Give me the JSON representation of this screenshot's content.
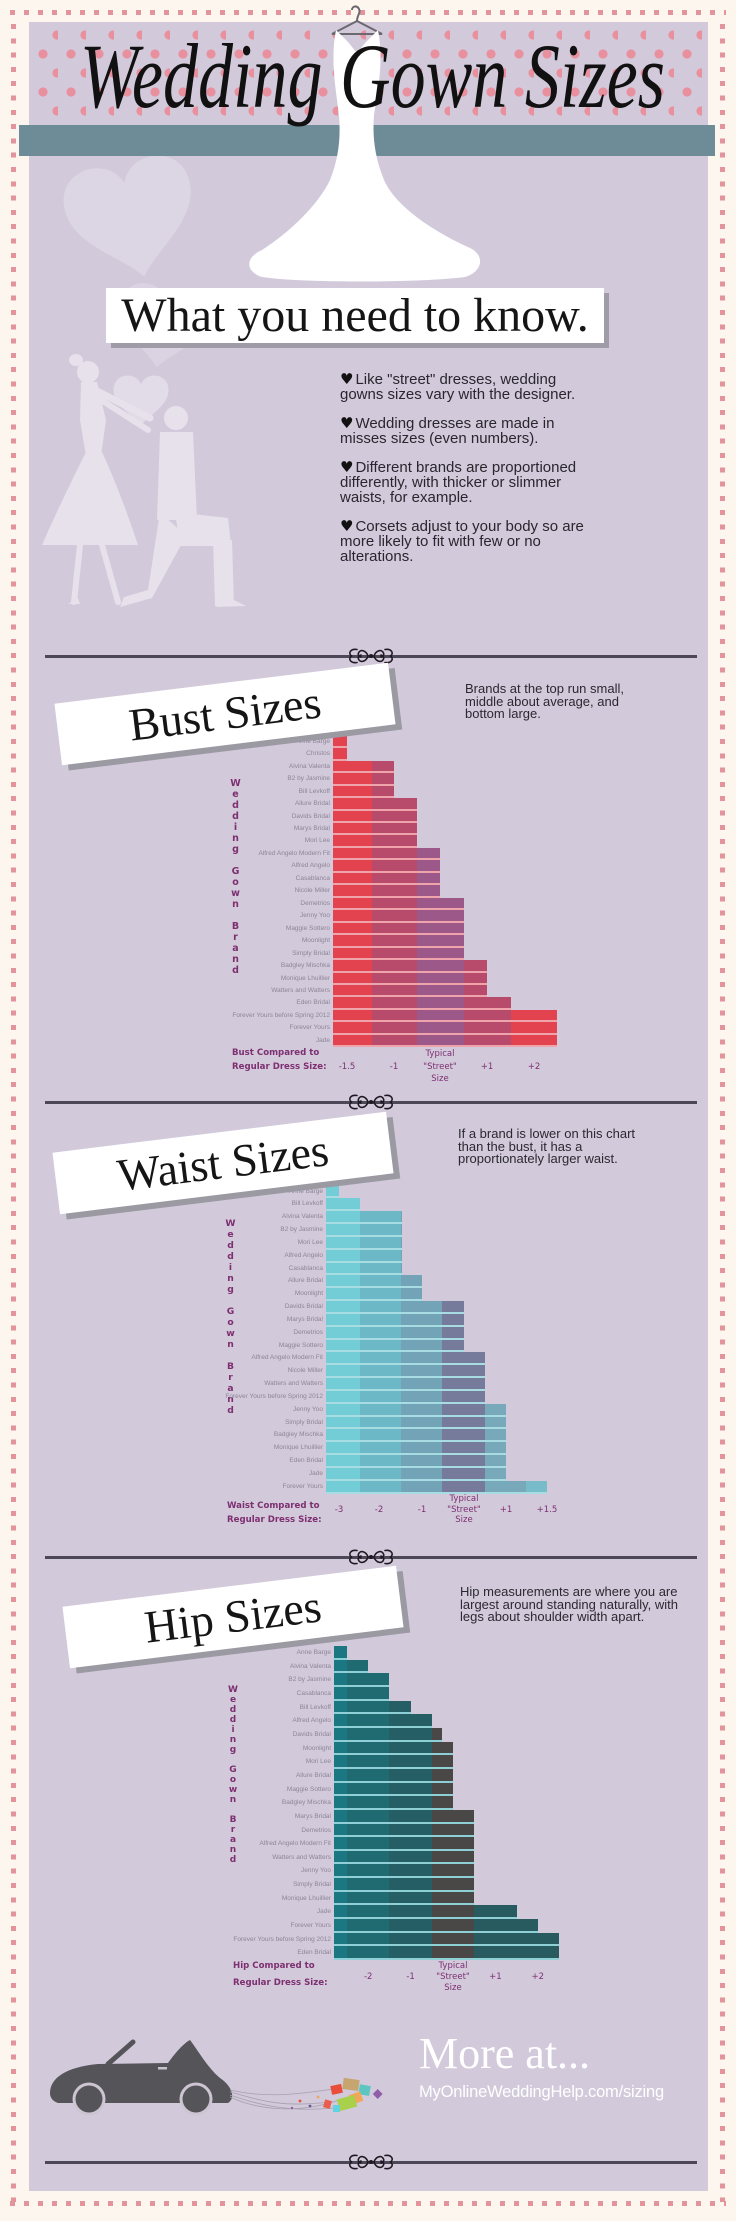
{
  "header": {
    "title": "Wedding Gown Sizes",
    "subtitle": "What you need to know."
  },
  "intro": {
    "bullet_icon": "heart-icon",
    "bullets": [
      "Like \"street\" dresses, wedding gowns sizes vary with the designer.",
      "Wedding dresses are made in misses sizes (even numbers).",
      "Different brands are proportioned differently, with thicker or slimmer waists, for example.",
      "Corsets adjust to your body so are more likely to fit with few or no alterations."
    ]
  },
  "chart_data": [
    {
      "type": "bar",
      "orientation": "horizontal",
      "title": "Bust Sizes",
      "description": "Brands at the top run small, middle about average, and bottom large.",
      "xlabel_lines": [
        "Bust Compared to",
        "Regular Dress Size:"
      ],
      "ylabel": "Wedding Gown Brand",
      "xlim": [
        -2,
        2.5
      ],
      "ticks": [
        {
          "value": -1.5,
          "lines": [
            "-1.5"
          ]
        },
        {
          "value": -1,
          "lines": [
            "-1"
          ]
        },
        {
          "value": 0,
          "lines": [
            "Typical",
            "\"Street\"",
            "Size"
          ]
        },
        {
          "value": 1,
          "lines": [
            "+1"
          ]
        },
        {
          "value": 2,
          "lines": [
            "+2"
          ]
        }
      ],
      "categories": [
        "Anne Barge",
        "Christos",
        "Alvina Valenta",
        "B2 by Jasmine",
        "Bill Levkoff",
        "Allure Bridal",
        "Davids Bridal",
        "Marys Bridal",
        "Mori Lee",
        "Alfred Angelo Modern Fit",
        "Alfred Angelo",
        "Casablanca",
        "Nicole Miller",
        "Demetrios",
        "Jenny Yoo",
        "Maggie Sottero",
        "Moonlight",
        "Simply Bridal",
        "Badgley Mischka",
        "Monique Lhuillier",
        "Watters and Watters",
        "Eden Bridal",
        "Forever Yours before Spring 2012",
        "Forever Yours",
        "Jade"
      ],
      "values": [
        -1.5,
        -1.5,
        -1,
        -1,
        -1,
        -0.5,
        -0.5,
        -0.5,
        -0.5,
        0,
        0,
        0,
        0,
        0.5,
        0.5,
        0.5,
        0.5,
        0.5,
        1,
        1,
        1,
        1.5,
        2.5,
        2.5,
        2.5
      ],
      "band_colors": [
        "#e3434f",
        "#b84a6c",
        "#9b5889",
        "#b84a6c",
        "#e3434f"
      ]
    },
    {
      "type": "bar",
      "orientation": "horizontal",
      "title": "Waist Sizes",
      "description": "If a brand is lower on this chart than the bust, it has a proportionately larger waist.",
      "xlabel_lines": [
        "Waist Compared to",
        "Regular Dress Size:"
      ],
      "ylabel": "Wedding Gown Brand",
      "xlim": [
        -3.5,
        1.5
      ],
      "ticks": [
        {
          "value": -3,
          "lines": [
            "-3"
          ]
        },
        {
          "value": -2,
          "lines": [
            "-2"
          ]
        },
        {
          "value": -1,
          "lines": [
            "-1"
          ]
        },
        {
          "value": 0,
          "lines": [
            "Typical",
            "\"Street\"",
            "Size"
          ]
        },
        {
          "value": 1,
          "lines": [
            "+1"
          ]
        },
        {
          "value": 1.5,
          "lines": [
            "+1.5"
          ]
        }
      ],
      "categories": [
        "Anne Barge",
        "Bill Levkoff",
        "Alvina Valenta",
        "B2 by Jasmine",
        "Mori Lee",
        "Alfred Angelo",
        "Casablanca",
        "Allure Bridal",
        "Moonlight",
        "Davids Bridal",
        "Marys Bridal",
        "Demetrios",
        "Maggie Sottero",
        "Alfred Angelo Modern Fit",
        "Nicole Miller",
        "Watters and Watters",
        "Forever Yours before Spring 2012",
        "Jenny Yoo",
        "Simply Bridal",
        "Badgley Mischka",
        "Monique Lhuillier",
        "Eden Bridal",
        "Jade",
        "Forever Yours"
      ],
      "values": [
        -3,
        -2.5,
        -1.5,
        -1.5,
        -1.5,
        -1.5,
        -1.5,
        -1,
        -1,
        0,
        0,
        0,
        0,
        0.5,
        0.5,
        0.5,
        0.5,
        1,
        1,
        1,
        1,
        1,
        1,
        1.5
      ],
      "band_colors": [
        "#72cdd6",
        "#6db8c6",
        "#72a3b6",
        "#767a9b",
        "#77a9bb",
        "#77bcc8"
      ]
    },
    {
      "type": "bar",
      "orientation": "horizontal",
      "title": "Hip Sizes",
      "description": "Hip measurements are where you are largest around standing naturally, with legs about shoulder width apart.",
      "xlabel_lines": [
        "Hip Compared to",
        "Regular Dress Size:"
      ],
      "ylabel": "Wedding Gown Brand",
      "xlim": [
        -2.75,
        2.5
      ],
      "ticks": [
        {
          "value": -2,
          "lines": [
            "-2"
          ]
        },
        {
          "value": -1,
          "lines": [
            "-1"
          ]
        },
        {
          "value": 0,
          "lines": [
            "Typical",
            "\"Street\"",
            "Size"
          ]
        },
        {
          "value": 1,
          "lines": [
            "+1"
          ]
        },
        {
          "value": 2,
          "lines": [
            "+2"
          ]
        }
      ],
      "categories": [
        "Anne Barge",
        "Alvina Valenta",
        "B2 by Jasmine",
        "Casablanca",
        "Bill Levkoff",
        "Alfred Angelo",
        "Davids Bridal",
        "Moonlight",
        "Mori Lee",
        "Allure Bridal",
        "Maggie Sottero",
        "Badgley Mischka",
        "Marys Bridal",
        "Demetrios",
        "Alfred Angelo Modern Fit",
        "Watters and Watters",
        "Jenny Yoo",
        "Simply Bridal",
        "Monique Lhuillier",
        "Jade",
        "Forever Yours",
        "Forever Yours before Spring 2012",
        "Eden Bridal"
      ],
      "values": [
        -2.5,
        -2,
        -1.5,
        -1.5,
        -1,
        -0.5,
        -0.25,
        0,
        0,
        0,
        0,
        0,
        0.5,
        0.5,
        0.5,
        0.5,
        0.5,
        0.5,
        0.5,
        1.5,
        2,
        2.5,
        2.5
      ],
      "band_colors": [
        "#1b7782",
        "#206a72",
        "#255e64",
        "#4a4747",
        "#285b60"
      ]
    }
  ],
  "footer": {
    "more_label": "More at...",
    "url_text": "MyOnlineWeddingHelp.com/sizing"
  },
  "colors": {
    "panel": "#d2c9db",
    "accent_band": "#6e8c97",
    "polka_dot": "#e8909d",
    "border_dash": "#e2939b",
    "axis_label": "#7d2f70"
  }
}
